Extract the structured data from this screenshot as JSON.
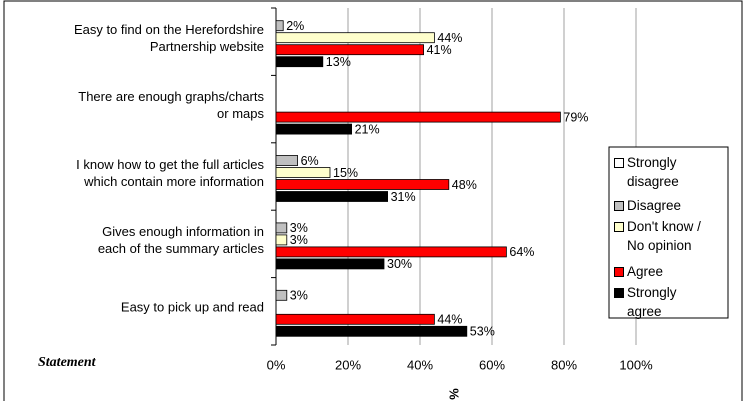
{
  "chart_data": {
    "type": "bar",
    "orientation": "horizontal",
    "categories": [
      "Easy to find on the Herefordshire\nPartnership website",
      "There are enough graphs/charts\nor maps",
      "I know how to get the full articles\nwhich contain more information",
      "Gives enough information in\neach of the summary articles",
      "Easy to pick up and read"
    ],
    "series": [
      {
        "name": "Strongly\ndisagree",
        "color": "#ffffff",
        "values": [
          null,
          null,
          null,
          null,
          null
        ],
        "value_labels": [
          null,
          null,
          null,
          null,
          null
        ]
      },
      {
        "name": "Disagree",
        "color": "#c0c0c0",
        "values": [
          2,
          null,
          6,
          3,
          3
        ],
        "value_labels": [
          "2%",
          null,
          "6%",
          "3%",
          "3%"
        ]
      },
      {
        "name": "Don't know /\nNo opinion",
        "color": "#ffffcc",
        "values": [
          44,
          null,
          15,
          3,
          null
        ],
        "value_labels": [
          "44%",
          null,
          "15%",
          "3%",
          null
        ]
      },
      {
        "name": "Agree",
        "color": "#ff0000",
        "values": [
          41,
          79,
          48,
          64,
          44
        ],
        "value_labels": [
          "41%",
          "79%",
          "48%",
          "64%",
          "44%"
        ]
      },
      {
        "name": "Strongly\nagree",
        "color": "#000000",
        "values": [
          13,
          21,
          31,
          30,
          53
        ],
        "value_labels": [
          "13%",
          "21%",
          "31%",
          "30%",
          "53%"
        ]
      }
    ],
    "xlim": [
      0,
      100
    ],
    "xticks": [
      {
        "value": 0,
        "label": "0%"
      },
      {
        "value": 20,
        "label": "20%"
      },
      {
        "value": 40,
        "label": "40%"
      },
      {
        "value": 60,
        "label": "60%"
      },
      {
        "value": 80,
        "label": "80%"
      },
      {
        "value": 100,
        "label": "100%"
      }
    ],
    "x_label": "%",
    "y_label": "Statement",
    "grid": true,
    "legend": "right"
  }
}
